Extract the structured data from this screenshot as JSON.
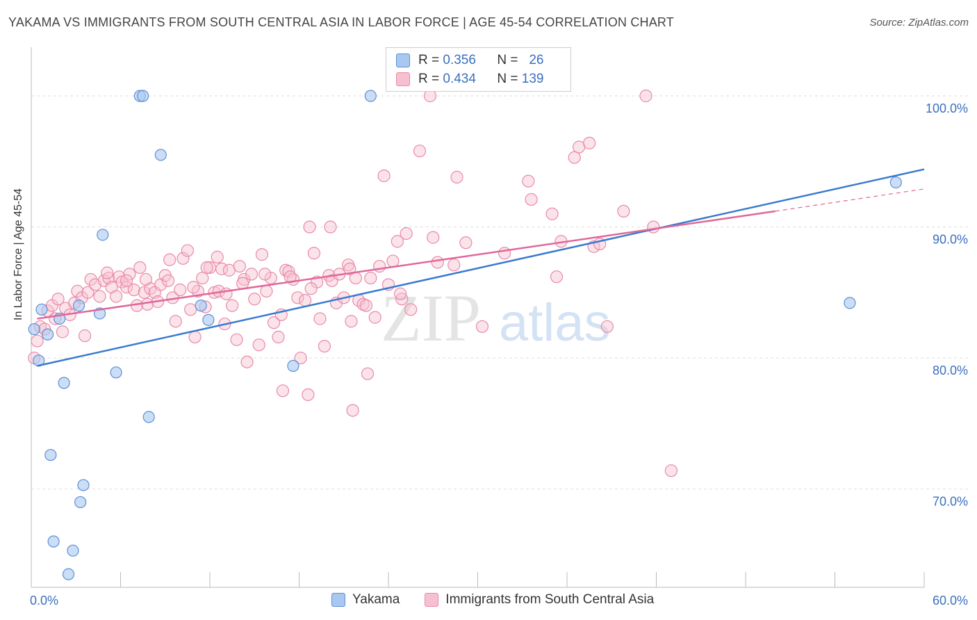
{
  "title": "YAKAMA VS IMMIGRANTS FROM SOUTH CENTRAL ASIA IN LABOR FORCE | AGE 45-54 CORRELATION CHART",
  "source": "Source: ZipAtlas.com",
  "watermark": {
    "zip": "ZIP",
    "atlas": "atlas"
  },
  "colors": {
    "blue_fill": "#a9c8ef",
    "blue_stroke": "#5b8fd6",
    "blue_line": "#3a7ad0",
    "pink_fill": "#f6c0d0",
    "pink_stroke": "#e88aa8",
    "pink_line": "#e0679a",
    "tick_label": "#3a6fbf",
    "grid": "#dddddd"
  },
  "legend": {
    "r_label": "R =",
    "n_label": "N =",
    "rows": [
      {
        "series": "Yakama",
        "r": "0.356",
        "n": "26"
      },
      {
        "series": "Immigrants from South Central Asia",
        "r": "0.434",
        "n": "139"
      }
    ]
  },
  "bottom_legend": [
    "Yakama",
    "Immigrants from South Central Asia"
  ],
  "chart_data": {
    "type": "scatter",
    "title": "YAKAMA VS IMMIGRANTS FROM SOUTH CENTRAL ASIA IN LABOR FORCE | AGE 45-54 CORRELATION CHART",
    "xlabel": "",
    "ylabel": "In Labor Force | Age 45-54",
    "xlim": [
      0,
      60
    ],
    "ylim": [
      62.5,
      103.5
    ],
    "x_tick_labels": [
      "0.0%",
      "60.0%"
    ],
    "y_ticks": [
      70,
      80,
      90,
      100
    ],
    "y_tick_labels": [
      "70.0%",
      "80.0%",
      "90.0%",
      "100.0%"
    ],
    "grid": true,
    "legend_position": "top-center",
    "series": [
      {
        "name": "Yakama",
        "r": 0.356,
        "n": 26,
        "trend": {
          "x": [
            0.4,
            60
          ],
          "y": [
            79.4,
            94.4
          ],
          "dashed_from": null
        },
        "points": [
          [
            0.2,
            82.2
          ],
          [
            0.5,
            79.8
          ],
          [
            0.7,
            83.7
          ],
          [
            1.1,
            81.8
          ],
          [
            1.3,
            72.6
          ],
          [
            1.5,
            66.0
          ],
          [
            1.9,
            83.0
          ],
          [
            2.2,
            78.1
          ],
          [
            2.8,
            65.3
          ],
          [
            2.5,
            63.5
          ],
          [
            3.2,
            84.0
          ],
          [
            3.3,
            69.0
          ],
          [
            3.5,
            70.3
          ],
          [
            4.6,
            83.4
          ],
          [
            4.8,
            89.4
          ],
          [
            5.7,
            78.9
          ],
          [
            7.3,
            100.0
          ],
          [
            7.5,
            100.0
          ],
          [
            7.9,
            75.5
          ],
          [
            8.7,
            95.5
          ],
          [
            11.4,
            84.0
          ],
          [
            11.9,
            82.9
          ],
          [
            17.6,
            79.4
          ],
          [
            22.8,
            100.0
          ],
          [
            55.0,
            84.2
          ],
          [
            58.1,
            93.4
          ]
        ]
      },
      {
        "name": "Immigrants from South Central Asia",
        "r": 0.434,
        "n": 139,
        "trend": {
          "x": [
            0.4,
            50
          ],
          "y": [
            83.0,
            91.2
          ],
          "dashed_to": [
            60,
            92.9
          ]
        },
        "points": [
          [
            0.2,
            80.0
          ],
          [
            0.4,
            81.3
          ],
          [
            0.6,
            82.4
          ],
          [
            0.9,
            82.2
          ],
          [
            1.1,
            83.6
          ],
          [
            1.4,
            84.0
          ],
          [
            1.6,
            83.0
          ],
          [
            1.8,
            84.5
          ],
          [
            2.1,
            82.0
          ],
          [
            2.3,
            83.8
          ],
          [
            2.6,
            83.3
          ],
          [
            2.9,
            84.2
          ],
          [
            3.1,
            85.1
          ],
          [
            3.4,
            84.6
          ],
          [
            3.6,
            81.7
          ],
          [
            3.8,
            85.0
          ],
          [
            4.0,
            86.0
          ],
          [
            4.3,
            85.6
          ],
          [
            4.6,
            84.7
          ],
          [
            4.9,
            85.9
          ],
          [
            5.2,
            86.1
          ],
          [
            5.4,
            85.4
          ],
          [
            5.7,
            84.7
          ],
          [
            5.9,
            86.2
          ],
          [
            6.1,
            85.8
          ],
          [
            6.4,
            85.4
          ],
          [
            6.6,
            86.4
          ],
          [
            6.9,
            85.2
          ],
          [
            7.1,
            84.0
          ],
          [
            7.3,
            86.9
          ],
          [
            7.6,
            85.0
          ],
          [
            7.8,
            84.1
          ],
          [
            8.0,
            85.3
          ],
          [
            8.3,
            85.0
          ],
          [
            8.5,
            84.3
          ],
          [
            8.7,
            85.6
          ],
          [
            9.0,
            86.3
          ],
          [
            9.2,
            85.9
          ],
          [
            9.5,
            84.6
          ],
          [
            9.7,
            82.8
          ],
          [
            10.0,
            85.2
          ],
          [
            10.2,
            87.6
          ],
          [
            10.5,
            88.2
          ],
          [
            10.7,
            83.7
          ],
          [
            11.0,
            81.6
          ],
          [
            11.2,
            85.1
          ],
          [
            11.5,
            86.1
          ],
          [
            11.7,
            83.9
          ],
          [
            12.0,
            86.9
          ],
          [
            12.3,
            85.0
          ],
          [
            12.5,
            87.7
          ],
          [
            12.8,
            86.8
          ],
          [
            13.0,
            82.6
          ],
          [
            13.3,
            86.7
          ],
          [
            13.5,
            84.0
          ],
          [
            13.8,
            81.4
          ],
          [
            14.0,
            87.0
          ],
          [
            14.3,
            86.0
          ],
          [
            14.5,
            79.7
          ],
          [
            14.8,
            86.4
          ],
          [
            15.0,
            84.5
          ],
          [
            15.3,
            81.0
          ],
          [
            15.5,
            87.9
          ],
          [
            15.8,
            85.1
          ],
          [
            16.1,
            86.1
          ],
          [
            16.3,
            82.7
          ],
          [
            16.6,
            81.6
          ],
          [
            16.8,
            83.3
          ],
          [
            17.1,
            86.7
          ],
          [
            17.3,
            86.6
          ],
          [
            17.6,
            86.0
          ],
          [
            17.9,
            84.6
          ],
          [
            18.1,
            80.0
          ],
          [
            18.4,
            84.4
          ],
          [
            18.6,
            77.2
          ],
          [
            19.2,
            85.8
          ],
          [
            19.4,
            83.0
          ],
          [
            19.7,
            80.9
          ],
          [
            20.0,
            86.3
          ],
          [
            20.2,
            85.9
          ],
          [
            20.5,
            84.2
          ],
          [
            20.7,
            86.4
          ],
          [
            21.0,
            84.6
          ],
          [
            21.3,
            87.1
          ],
          [
            21.5,
            82.8
          ],
          [
            21.8,
            86.1
          ],
          [
            22.0,
            84.4
          ],
          [
            22.3,
            84.1
          ],
          [
            22.6,
            78.8
          ],
          [
            22.8,
            86.1
          ],
          [
            23.1,
            83.1
          ],
          [
            23.4,
            87.0
          ],
          [
            23.7,
            93.9
          ],
          [
            24.0,
            85.6
          ],
          [
            24.3,
            87.4
          ],
          [
            24.6,
            88.9
          ],
          [
            24.9,
            84.5
          ],
          [
            25.2,
            89.5
          ],
          [
            25.5,
            83.7
          ],
          [
            26.1,
            95.8
          ],
          [
            27.0,
            89.2
          ],
          [
            27.3,
            87.3
          ],
          [
            28.4,
            87.1
          ],
          [
            28.6,
            93.8
          ],
          [
            29.2,
            88.8
          ],
          [
            30.3,
            82.4
          ],
          [
            31.8,
            88.0
          ],
          [
            33.4,
            93.5
          ],
          [
            33.6,
            92.1
          ],
          [
            35.0,
            91.0
          ],
          [
            35.3,
            86.2
          ],
          [
            35.6,
            88.9
          ],
          [
            36.5,
            95.3
          ],
          [
            36.8,
            96.1
          ],
          [
            37.5,
            96.4
          ],
          [
            37.8,
            88.5
          ],
          [
            38.2,
            88.7
          ],
          [
            38.7,
            82.4
          ],
          [
            39.8,
            91.2
          ],
          [
            41.3,
            100.0
          ],
          [
            41.8,
            90.0
          ],
          [
            43.0,
            71.4
          ],
          [
            21.6,
            76.0
          ],
          [
            16.9,
            77.5
          ],
          [
            20.1,
            90.0
          ],
          [
            18.7,
            90.0
          ],
          [
            26.8,
            100.0
          ],
          [
            6.4,
            85.9
          ],
          [
            12.6,
            85.1
          ],
          [
            15.7,
            86.4
          ],
          [
            19.0,
            88.0
          ],
          [
            5.1,
            86.5
          ],
          [
            9.3,
            87.5
          ],
          [
            11.8,
            86.9
          ],
          [
            13.1,
            84.9
          ],
          [
            17.4,
            86.2
          ],
          [
            21.4,
            86.8
          ],
          [
            22.5,
            84.0
          ],
          [
            24.8,
            84.9
          ],
          [
            7.7,
            86.0
          ],
          [
            10.9,
            85.4
          ],
          [
            14.2,
            85.7
          ],
          [
            18.8,
            85.3
          ]
        ]
      }
    ]
  }
}
